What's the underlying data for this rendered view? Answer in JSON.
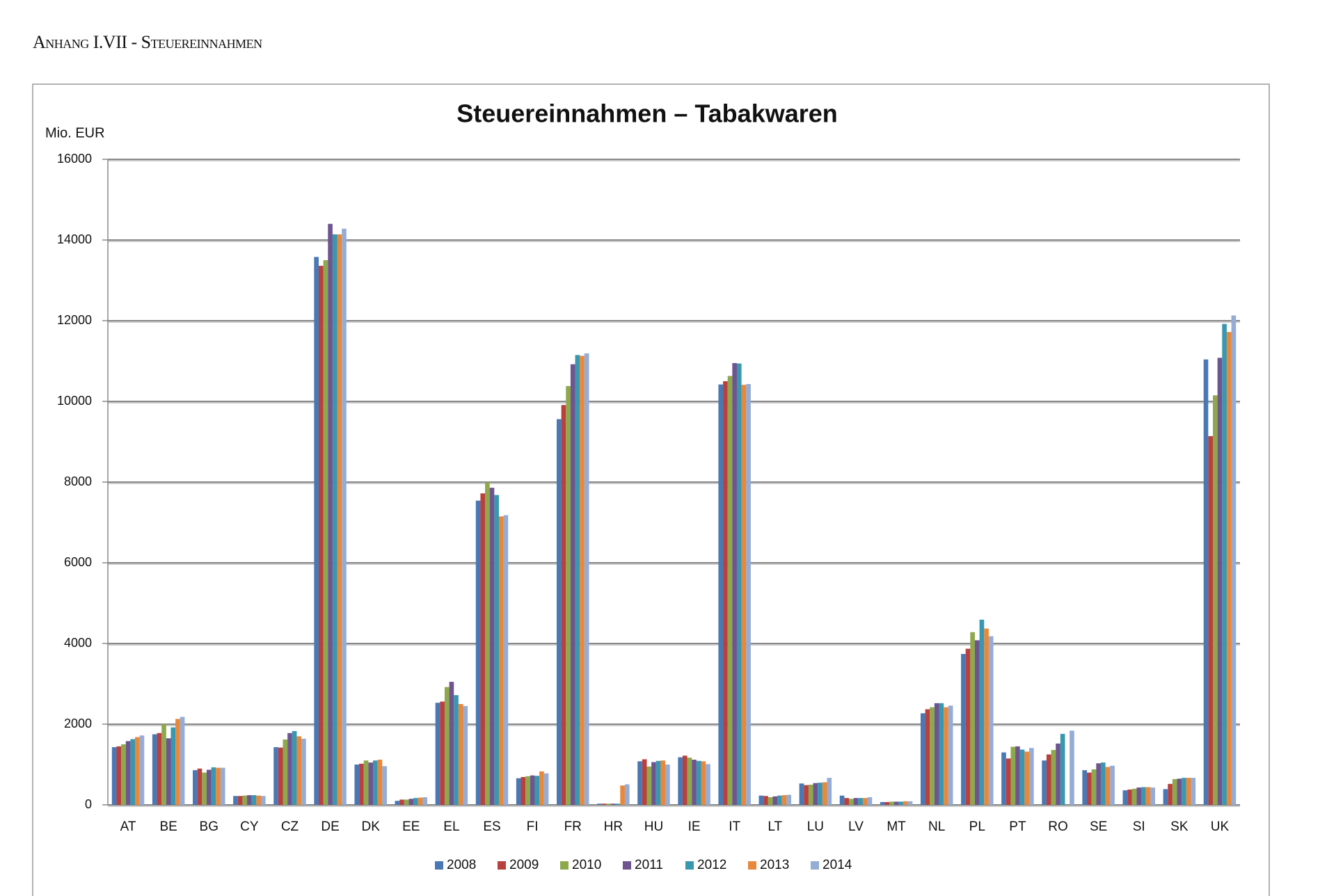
{
  "header": "Anhang I.VII - Steuereinnahmen",
  "chart_data": {
    "type": "bar",
    "title": "Steuereinnahmen – Tabakwaren",
    "y_label": "Mio. EUR",
    "categories": [
      "AT",
      "BE",
      "BG",
      "CY",
      "CZ",
      "DE",
      "DK",
      "EE",
      "EL",
      "ES",
      "FI",
      "FR",
      "HR",
      "HU",
      "IE",
      "IT",
      "LT",
      "LU",
      "LV",
      "MT",
      "NL",
      "PL",
      "PT",
      "RO",
      "SE",
      "SI",
      "SK",
      "UK"
    ],
    "series": [
      {
        "name": "2008",
        "color": "#4a78b4",
        "values": [
          1430,
          1750,
          860,
          220,
          1430,
          13580,
          1000,
          100,
          2530,
          7540,
          660,
          9560,
          30,
          1080,
          1180,
          10420,
          230,
          530,
          230,
          70,
          2270,
          3740,
          1300,
          1100,
          860,
          360,
          390,
          11040
        ]
      },
      {
        "name": "2009",
        "color": "#b9403d",
        "values": [
          1450,
          1780,
          900,
          220,
          1420,
          13360,
          1020,
          130,
          2560,
          7720,
          690,
          9910,
          30,
          1130,
          1220,
          10500,
          220,
          490,
          170,
          70,
          2370,
          3870,
          1150,
          1250,
          800,
          380,
          520,
          9140
        ]
      },
      {
        "name": "2010",
        "color": "#8ea84c",
        "values": [
          1500,
          2000,
          800,
          230,
          1620,
          13500,
          1100,
          130,
          2920,
          8000,
          710,
          10380,
          30,
          950,
          1170,
          10630,
          190,
          500,
          150,
          80,
          2420,
          4280,
          1440,
          1360,
          880,
          400,
          640,
          10150
        ]
      },
      {
        "name": "2011",
        "color": "#6e5590",
        "values": [
          1580,
          1650,
          870,
          240,
          1780,
          14400,
          1050,
          150,
          3050,
          7860,
          730,
          10920,
          30,
          1060,
          1120,
          10950,
          210,
          540,
          170,
          80,
          2520,
          4080,
          1450,
          1520,
          1030,
          430,
          650,
          11080
        ]
      },
      {
        "name": "2012",
        "color": "#3a97b0",
        "values": [
          1630,
          1920,
          930,
          240,
          1830,
          14140,
          1100,
          170,
          2720,
          7680,
          720,
          11150,
          30,
          1090,
          1090,
          10940,
          230,
          550,
          170,
          80,
          2520,
          4590,
          1370,
          1760,
          1050,
          440,
          670,
          11920
        ]
      },
      {
        "name": "2013",
        "color": "#e8883a",
        "values": [
          1680,
          2130,
          920,
          230,
          1700,
          14140,
          1120,
          180,
          2500,
          7150,
          830,
          11130,
          480,
          1100,
          1080,
          10410,
          240,
          560,
          170,
          90,
          2420,
          4370,
          1320,
          null,
          940,
          440,
          670,
          11720
        ]
      },
      {
        "name": "2014",
        "color": "#95acd6",
        "values": [
          1720,
          2180,
          920,
          220,
          1640,
          14280,
          960,
          190,
          2450,
          7180,
          780,
          11190,
          510,
          1000,
          1010,
          10430,
          250,
          670,
          190,
          90,
          2460,
          4180,
          1410,
          1840,
          970,
          430,
          670,
          12130
        ]
      }
    ],
    "ylim": [
      0,
      16000
    ],
    "yticks": [
      0,
      2000,
      4000,
      6000,
      8000,
      10000,
      12000,
      14000,
      16000
    ],
    "grid": true
  }
}
